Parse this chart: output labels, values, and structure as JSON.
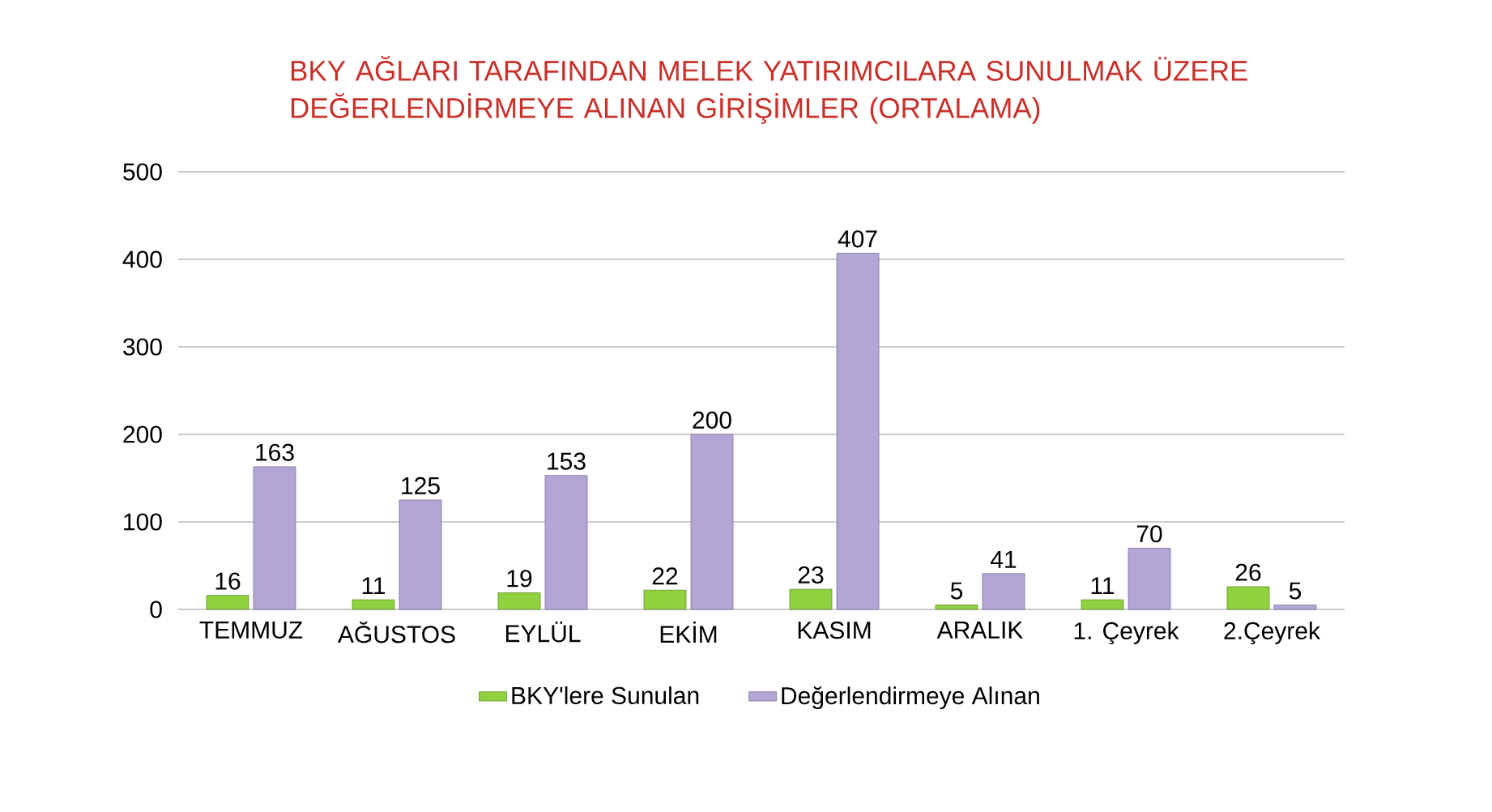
{
  "chart_data": {
    "type": "bar",
    "title": "BKY AĞLARI TARAFINDAN MELEK YATIRIMCILARA SUNULMAK ÜZERE DEĞERLENDİRMEYE ALINAN GİRİŞİMLER (ORTALAMA)",
    "categories": [
      "TEMMUZ",
      "AĞUSTOS",
      "EYLÜL",
      "EKİM",
      "KASIM",
      "ARALIK",
      "1. Çeyrek",
      "2.Çeyrek"
    ],
    "series": [
      {
        "name": "BKY'lere Sunulan",
        "color": "#8fd13f",
        "values": [
          16,
          11,
          19,
          22,
          23,
          5,
          11,
          26
        ]
      },
      {
        "name": "Değerlendirmeye Alınan",
        "color": "#b3a5d6",
        "values": [
          163,
          125,
          153,
          200,
          407,
          41,
          70,
          5
        ]
      }
    ],
    "ylim": [
      0,
      500
    ],
    "yticks": [
      0,
      100,
      200,
      300,
      400,
      500
    ],
    "grid": "y",
    "legend": "bottom",
    "data_labels": true
  }
}
